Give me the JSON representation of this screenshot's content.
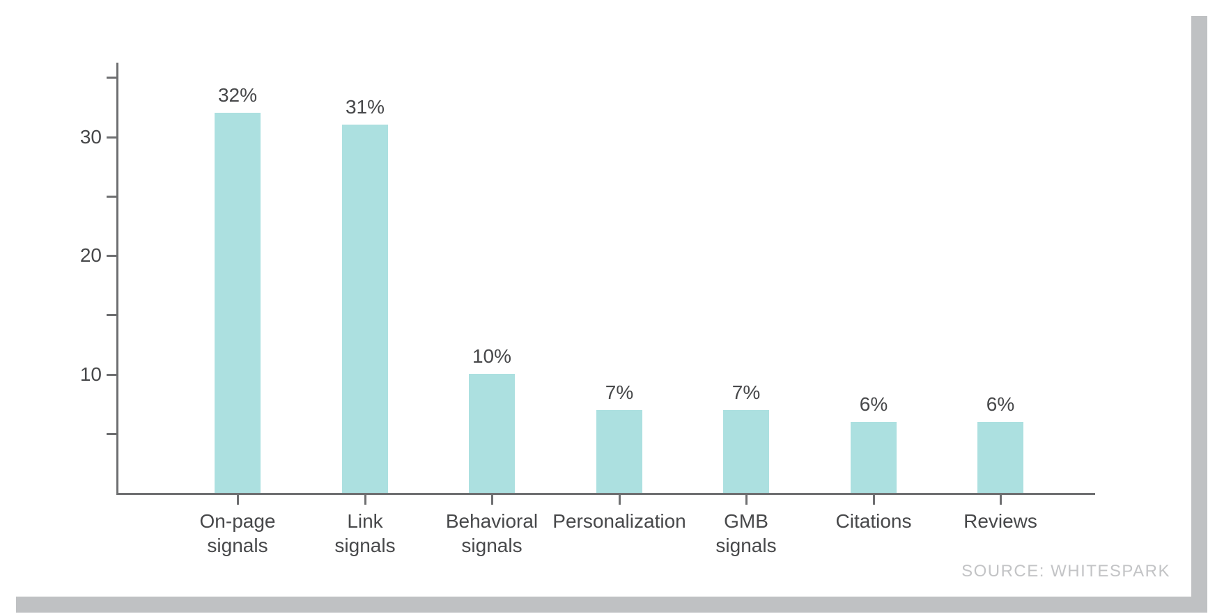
{
  "chart_data": {
    "type": "bar",
    "categories": [
      "On-page\nsignals",
      "Link\nsignals",
      "Behavioral\nsignals",
      "Personalization",
      "GMB\nsignals",
      "Citations",
      "Reviews"
    ],
    "values": [
      32,
      31,
      10,
      7,
      7,
      6,
      6
    ],
    "value_labels": [
      "32%",
      "31%",
      "10%",
      "7%",
      "7%",
      "6%",
      "6%"
    ],
    "title": "",
    "xlabel": "",
    "ylabel": "",
    "ylim": [
      0,
      36
    ],
    "y_major_ticks": [
      10,
      20,
      30
    ],
    "y_major_tick_labels": [
      "10",
      "20",
      "30"
    ],
    "y_minor_ticks": [
      5,
      15,
      25,
      35
    ],
    "grid": false,
    "legend": "none",
    "source_note": "SOURCE: WHITESPARK"
  },
  "colors": {
    "bar": "#ace0e0",
    "axis": "#6e6f71",
    "text": "#47484a",
    "source_text": "#c3c4c6",
    "card_background": "#ffffff",
    "card_shadow": "#bfc1c3"
  }
}
